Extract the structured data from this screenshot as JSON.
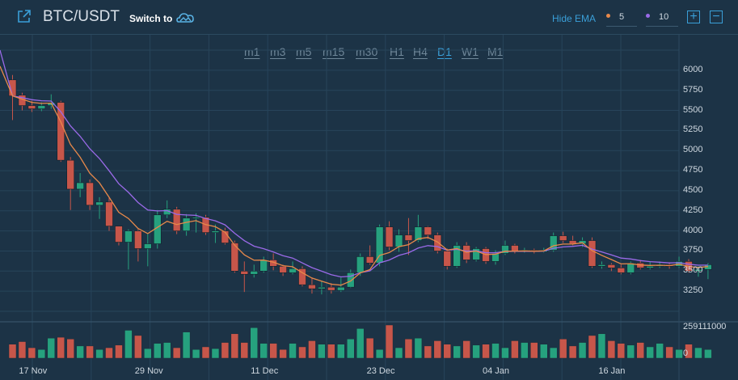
{
  "header": {
    "pair": "BTC/USDT",
    "switch_label": "Switch to",
    "hide_ema_label": "Hide EMA",
    "ema": [
      {
        "value": "5",
        "color": "#e8894a"
      },
      {
        "value": "10",
        "color": "#9a6ae8"
      }
    ],
    "zoom_in_label": "+",
    "zoom_out_label": "−"
  },
  "timeframes": [
    "m1",
    "m3",
    "m5",
    "m15",
    "m30",
    "H1",
    "H4",
    "D1",
    "W1",
    "M1"
  ],
  "active_timeframe": "D1",
  "colors": {
    "up": "#26a17e",
    "down": "#c7564a",
    "ema5": "#e8894a",
    "ema10": "#9a6ae8",
    "accent": "#3a9fd8"
  },
  "chart_data": {
    "type": "candlestick",
    "price_axis": {
      "ticks": [
        "6000",
        "5750",
        "5500",
        "5250",
        "5000",
        "4750",
        "4500",
        "4250",
        "4000",
        "3750",
        "3500",
        "3250"
      ],
      "range": [
        3000,
        6250
      ]
    },
    "volume_axis": {
      "ticks": [
        "259111000",
        "0"
      ],
      "max": 259111000
    },
    "x_ticks": [
      {
        "label": "17 Nov",
        "index": 2
      },
      {
        "label": "29 Nov",
        "index": 14
      },
      {
        "label": "11 Dec",
        "index": 26
      },
      {
        "label": "23 Dec",
        "index": 38
      },
      {
        "label": "04 Jan",
        "index": 50
      },
      {
        "label": "16 Jan",
        "index": 62
      }
    ],
    "candles": [
      [
        5880,
        5680,
        5940,
        5380
      ],
      [
        5690,
        5560,
        5720,
        5500
      ],
      [
        5560,
        5520,
        5620,
        5480
      ],
      [
        5520,
        5560,
        5600,
        5490
      ],
      [
        5560,
        5600,
        5700,
        5520
      ],
      [
        5600,
        4880,
        5620,
        4860
      ],
      [
        4880,
        4520,
        4920,
        4260
      ],
      [
        4520,
        4600,
        4720,
        4420
      ],
      [
        4600,
        4320,
        4640,
        4260
      ],
      [
        4320,
        4360,
        4420,
        4150
      ],
      [
        4360,
        4060,
        4420,
        4000
      ],
      [
        4060,
        3860,
        4060,
        3820
      ],
      [
        3860,
        4000,
        4020,
        3520
      ],
      [
        4000,
        3780,
        4020,
        3620
      ],
      [
        3780,
        3840,
        3960,
        3560
      ],
      [
        3840,
        4200,
        4260,
        3780
      ],
      [
        4200,
        4270,
        4380,
        4160
      ],
      [
        4270,
        4000,
        4300,
        3960
      ],
      [
        4000,
        4160,
        4210,
        3940
      ],
      [
        4160,
        4170,
        4220,
        3980
      ],
      [
        4170,
        3980,
        4200,
        3950
      ],
      [
        3980,
        4000,
        4080,
        3850
      ],
      [
        4000,
        3850,
        4040,
        3830
      ],
      [
        3850,
        3500,
        3880,
        3480
      ],
      [
        3500,
        3460,
        3620,
        3240
      ],
      [
        3460,
        3500,
        3580,
        3420
      ],
      [
        3500,
        3640,
        3680,
        3480
      ],
      [
        3640,
        3560,
        3720,
        3510
      ],
      [
        3560,
        3480,
        3580,
        3440
      ],
      [
        3480,
        3530,
        3620,
        3460
      ],
      [
        3530,
        3330,
        3560,
        3310
      ],
      [
        3330,
        3280,
        3420,
        3220
      ],
      [
        3280,
        3300,
        3380,
        3210
      ],
      [
        3300,
        3260,
        3350,
        3220
      ],
      [
        3260,
        3300,
        3420,
        3240
      ],
      [
        3300,
        3480,
        3520,
        3290
      ],
      [
        3480,
        3680,
        3720,
        3440
      ],
      [
        3680,
        3600,
        3820,
        3580
      ],
      [
        3600,
        4050,
        4080,
        3560
      ],
      [
        4050,
        3800,
        4120,
        3760
      ],
      [
        3800,
        3950,
        4020,
        3740
      ],
      [
        3950,
        3880,
        4160,
        3700
      ],
      [
        3880,
        4050,
        4200,
        3860
      ],
      [
        4050,
        3950,
        4060,
        3900
      ],
      [
        3950,
        3750,
        3980,
        3720
      ],
      [
        3750,
        3560,
        3780,
        3520
      ],
      [
        3560,
        3820,
        3860,
        3540
      ],
      [
        3820,
        3640,
        3860,
        3600
      ],
      [
        3640,
        3780,
        3800,
        3620
      ],
      [
        3780,
        3620,
        3800,
        3590
      ],
      [
        3620,
        3720,
        3760,
        3580
      ],
      [
        3720,
        3820,
        3880,
        3700
      ],
      [
        3820,
        3750,
        3840,
        3720
      ],
      [
        3750,
        3760,
        3790,
        3730
      ],
      [
        3760,
        3740,
        3780,
        3720
      ],
      [
        3740,
        3760,
        3790,
        3730
      ],
      [
        3760,
        3940,
        3980,
        3740
      ],
      [
        3940,
        3880,
        3990,
        3850
      ],
      [
        3880,
        3840,
        3940,
        3820
      ],
      [
        3840,
        3880,
        3920,
        3800
      ],
      [
        3880,
        3560,
        3920,
        3540
      ],
      [
        3560,
        3580,
        3620,
        3530
      ],
      [
        3580,
        3540,
        3600,
        3500
      ],
      [
        3540,
        3480,
        3580,
        3460
      ],
      [
        3480,
        3600,
        3620,
        3460
      ],
      [
        3600,
        3540,
        3640,
        3520
      ],
      [
        3540,
        3560,
        3620,
        3520
      ],
      [
        3560,
        3580,
        3620,
        3540
      ],
      [
        3580,
        3560,
        3610,
        3530
      ],
      [
        3560,
        3620,
        3680,
        3540
      ],
      [
        3620,
        3500,
        3650,
        3480
      ],
      [
        3500,
        3520,
        3560,
        3430
      ],
      [
        3520,
        3580,
        3600,
        3400
      ]
    ],
    "volumes": [
      0.16,
      0.19,
      0.12,
      0.1,
      0.23,
      0.24,
      0.22,
      0.14,
      0.14,
      0.1,
      0.12,
      0.15,
      0.32,
      0.26,
      0.11,
      0.17,
      0.18,
      0.12,
      0.3,
      0.1,
      0.13,
      0.11,
      0.18,
      0.28,
      0.18,
      0.35,
      0.17,
      0.17,
      0.1,
      0.17,
      0.13,
      0.2,
      0.16,
      0.16,
      0.16,
      0.22,
      0.34,
      0.23,
      0.1,
      0.38,
      0.12,
      0.22,
      0.23,
      0.14,
      0.2,
      0.16,
      0.14,
      0.2,
      0.15,
      0.16,
      0.17,
      0.12,
      0.2,
      0.18,
      0.18,
      0.16,
      0.12,
      0.22,
      0.14,
      0.18,
      0.26,
      0.28,
      0.2,
      0.17,
      0.15,
      0.18,
      0.13,
      0.17,
      0.13,
      0.1,
      0.16,
      0.12,
      0.1
    ]
  }
}
